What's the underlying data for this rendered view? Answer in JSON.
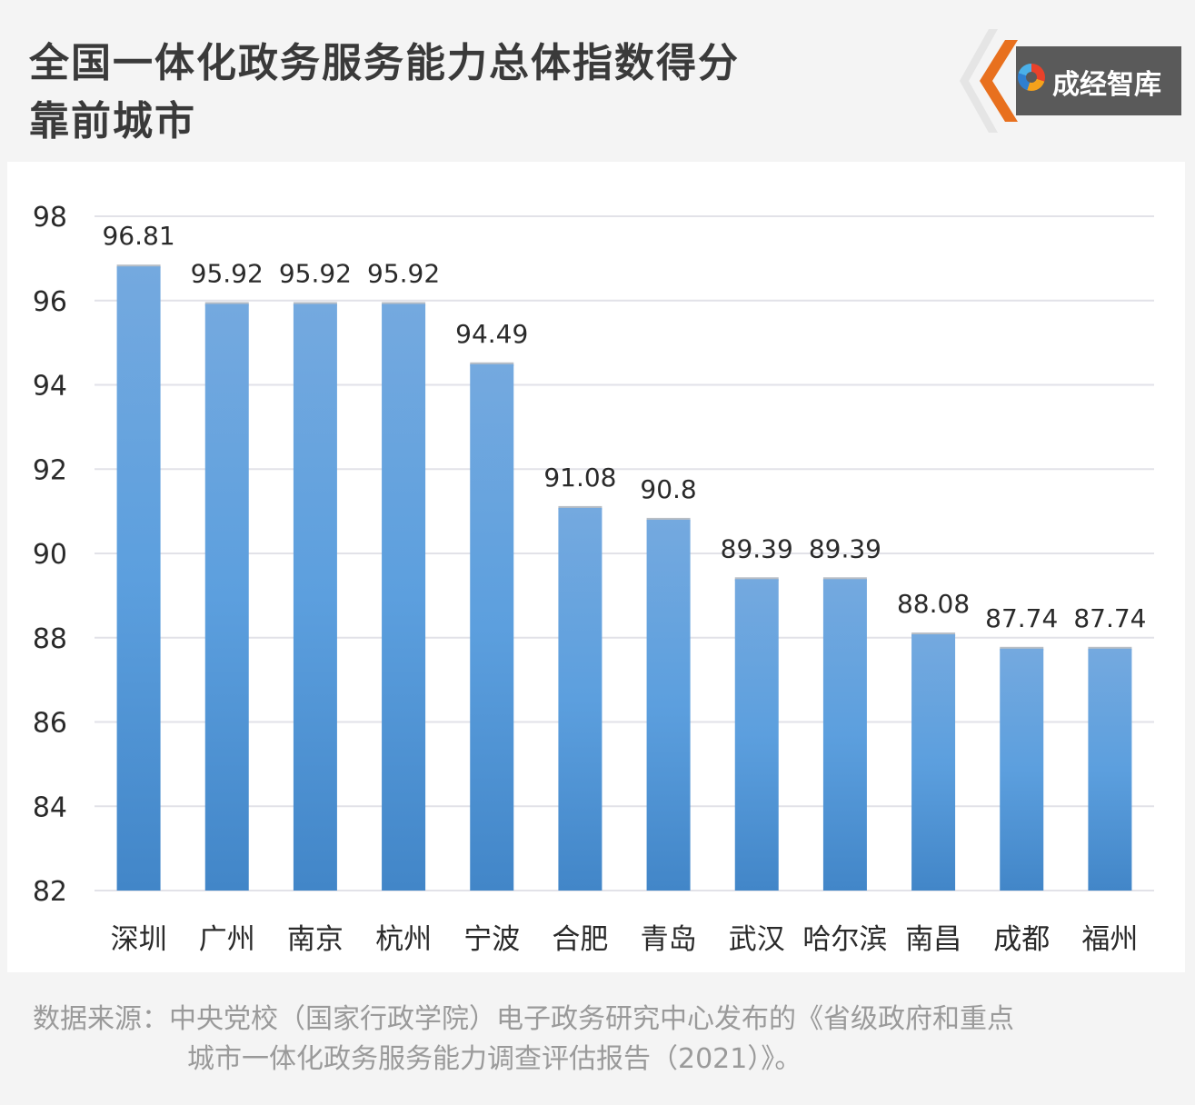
{
  "title_line1": "全国一体化政务服务能力总体指数得分",
  "title_line2": "靠前城市",
  "logo_text": "成经智库",
  "source_label": "数据来源：",
  "source_line1": "中央党校（国家行政学院）电子政务研究中心发布的《省级政府和重点",
  "source_line2": "城市一体化政务服务能力调查评估报告（2021）》。",
  "colors": {
    "bar_top": "#74a9df",
    "bar_mid": "#5c9fde",
    "bar_bottom": "#4286c8",
    "grid": "#e2e2e8",
    "text": "#2a2a2a"
  },
  "chart_data": {
    "type": "bar",
    "categories": [
      "深圳",
      "广州",
      "南京",
      "杭州",
      "宁波",
      "合肥",
      "青岛",
      "武汉",
      "哈尔滨",
      "南昌",
      "成都",
      "福州"
    ],
    "values": [
      96.81,
      95.92,
      95.92,
      95.92,
      94.49,
      91.08,
      90.8,
      89.39,
      89.39,
      88.08,
      87.74,
      87.74
    ],
    "ylim": [
      82,
      98
    ],
    "yticks": [
      82,
      84,
      86,
      88,
      90,
      92,
      94,
      96,
      98
    ],
    "grid": true,
    "data_labels": true
  }
}
